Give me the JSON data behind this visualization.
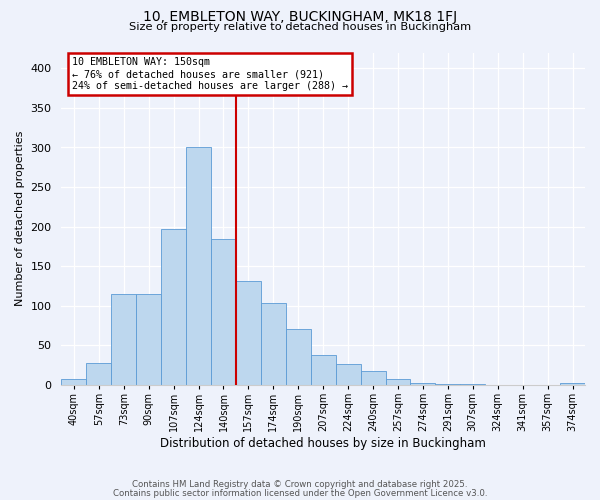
{
  "title": "10, EMBLETON WAY, BUCKINGHAM, MK18 1FJ",
  "subtitle": "Size of property relative to detached houses in Buckingham",
  "xlabel": "Distribution of detached houses by size in Buckingham",
  "ylabel": "Number of detached properties",
  "bar_labels": [
    "40sqm",
    "57sqm",
    "73sqm",
    "90sqm",
    "107sqm",
    "124sqm",
    "140sqm",
    "157sqm",
    "174sqm",
    "190sqm",
    "207sqm",
    "224sqm",
    "240sqm",
    "257sqm",
    "274sqm",
    "291sqm",
    "307sqm",
    "324sqm",
    "341sqm",
    "357sqm",
    "374sqm"
  ],
  "bar_values": [
    7,
    28,
    115,
    115,
    197,
    300,
    184,
    131,
    103,
    71,
    38,
    27,
    18,
    8,
    3,
    1,
    1,
    0,
    0,
    0,
    2
  ],
  "bar_color": "#bdd7ee",
  "bar_edge_color": "#5b9bd5",
  "annotation_label": "10 EMBLETON WAY: 150sqm",
  "annotation_line1": "← 76% of detached houses are smaller (921)",
  "annotation_line2": "24% of semi-detached houses are larger (288) →",
  "annotation_box_color": "#ffffff",
  "annotation_box_edge_color": "#cc0000",
  "line_color": "#cc0000",
  "property_line_bar_index": 7.0,
  "ylim": [
    0,
    420
  ],
  "yticks": [
    0,
    50,
    100,
    150,
    200,
    250,
    300,
    350,
    400
  ],
  "background_color": "#eef2fb",
  "grid_color": "#ffffff",
  "footer1": "Contains HM Land Registry data © Crown copyright and database right 2025.",
  "footer2": "Contains public sector information licensed under the Open Government Licence v3.0."
}
